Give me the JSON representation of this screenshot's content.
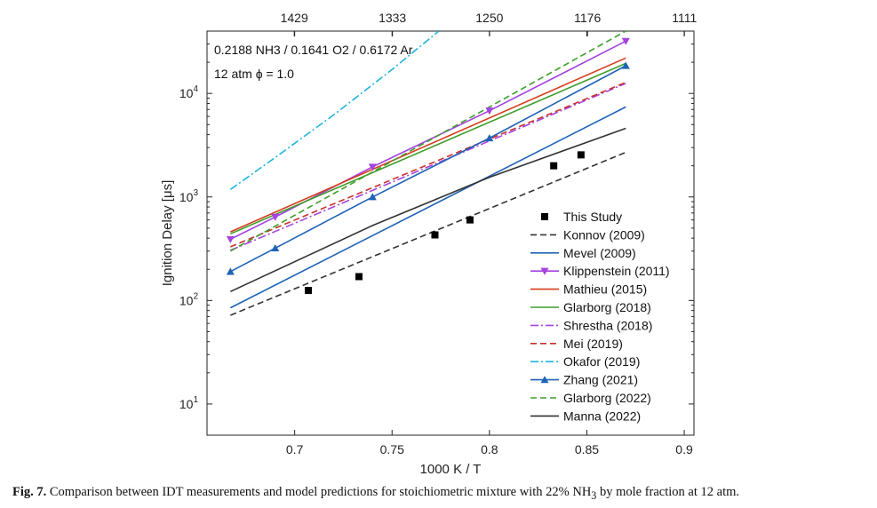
{
  "caption": {
    "label": "Fig. 7.",
    "text": "Comparison between IDT measurements and model predictions for stoichiometric mixture with 22% NH",
    "subscript": "3",
    "text_end": " by mole fraction at 12 atm."
  },
  "chart_data": {
    "type": "line",
    "xlabel": "1000 K / T",
    "ylabel": "Ignition Delay [μs]",
    "xlim": [
      0.655,
      0.905
    ],
    "ylim": [
      5,
      40000
    ],
    "yscale": "log",
    "grid": false,
    "legend_position": "lower-right",
    "x_ticks": [
      0.7,
      0.75,
      0.8,
      0.85,
      0.9
    ],
    "x_tick_labels": [
      "0.7",
      "0.75",
      "0.8",
      "0.85",
      "0.9"
    ],
    "y_ticks": [
      10,
      100,
      1000,
      10000
    ],
    "y_tick_labels": [
      {
        "base": "10",
        "exp": "1"
      },
      {
        "base": "10",
        "exp": "2"
      },
      {
        "base": "10",
        "exp": "3"
      },
      {
        "base": "10",
        "exp": "4"
      }
    ],
    "top_axis": {
      "label": "",
      "ticks_x": [
        0.69979,
        0.75019,
        0.8,
        0.85034,
        0.90009
      ],
      "tick_labels": [
        "1429",
        "1333",
        "1250",
        "1176",
        "1111"
      ]
    },
    "annotations": [
      "0.2188 NH3 / 0.1641 O2 / 0.6172 Ar",
      "12 atm   ϕ = 1.0"
    ],
    "series": [
      {
        "name": "This Study",
        "style": "markers",
        "color": "#000000",
        "marker": "square",
        "x": [
          0.707,
          0.733,
          0.772,
          0.79,
          0.833,
          0.847
        ],
        "y": [
          125,
          170,
          430,
          600,
          2000,
          2550
        ]
      },
      {
        "name": "Konnov (2009)",
        "style": "dashed",
        "color": "#333333",
        "x": [
          0.667,
          0.87
        ],
        "y": [
          72,
          2700
        ]
      },
      {
        "name": "Mevel (2009)",
        "style": "solid",
        "color": "#1f63b5",
        "x": [
          0.667,
          0.87
        ],
        "y": [
          85,
          7400
        ]
      },
      {
        "name": "Klippenstein (2011)",
        "style": "solid",
        "color": "#a443e0",
        "marker": "triangle-down",
        "x": [
          0.667,
          0.69,
          0.74,
          0.8,
          0.87
        ],
        "y": [
          390,
          640,
          1950,
          6800,
          32000
        ]
      },
      {
        "name": "Mathieu (2015)",
        "style": "solid",
        "color": "#d63d1c",
        "x": [
          0.667,
          0.87
        ],
        "y": [
          460,
          22000
        ]
      },
      {
        "name": "Glarborg (2018)",
        "style": "solid",
        "color": "#3f9e2c",
        "x": [
          0.667,
          0.87
        ],
        "y": [
          440,
          19500
        ]
      },
      {
        "name": "Shrestha (2018)",
        "style": "dashdot",
        "color": "#a443e0",
        "x": [
          0.667,
          0.87
        ],
        "y": [
          305,
          12500
        ]
      },
      {
        "name": "Mei (2019)",
        "style": "dashed",
        "color": "#c8322b",
        "x": [
          0.667,
          0.87
        ],
        "y": [
          330,
          12800
        ]
      },
      {
        "name": "Okafor (2019)",
        "style": "dashdot",
        "color": "#1fb4e0",
        "x": [
          0.667,
          0.69,
          0.72,
          0.75,
          0.774
        ],
        "y": [
          1180,
          2400,
          6200,
          17000,
          40000
        ]
      },
      {
        "name": "Zhang (2021)",
        "style": "solid",
        "color": "#1f63b5",
        "marker": "triangle-up",
        "x": [
          0.667,
          0.69,
          0.74,
          0.8,
          0.87
        ],
        "y": [
          190,
          320,
          1000,
          3700,
          18500
        ]
      },
      {
        "name": "Glarborg (2022)",
        "style": "dashed",
        "color": "#3f9e2c",
        "x": [
          0.667,
          0.87
        ],
        "y": [
          300,
          40000
        ]
      },
      {
        "name": "Manna (2022)",
        "style": "solid",
        "color": "#333333",
        "x": [
          0.667,
          0.74,
          0.8,
          0.87
        ],
        "y": [
          122,
          530,
          1550,
          4600
        ]
      }
    ]
  }
}
